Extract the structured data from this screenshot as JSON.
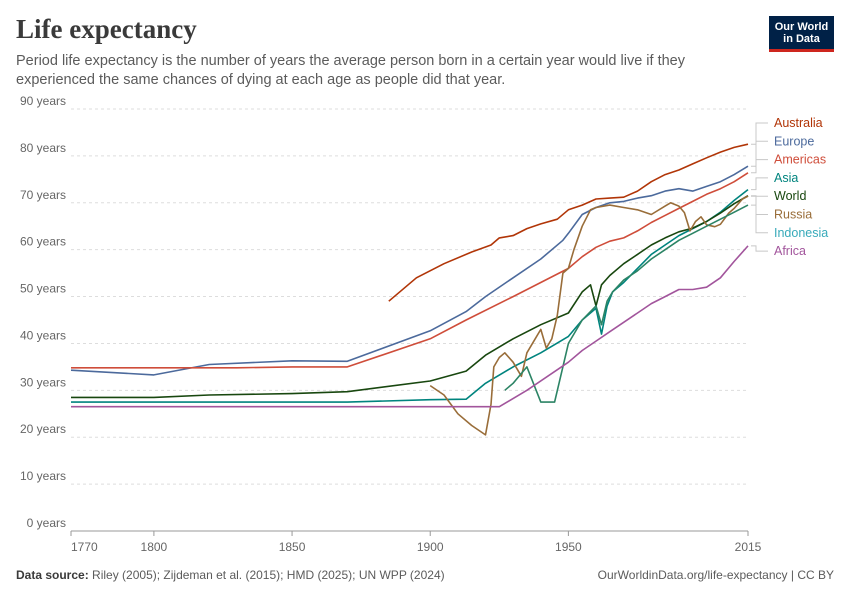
{
  "header": {
    "title": "Life expectancy",
    "subtitle": "Period life expectancy is the number of years the average person born in a certain year would live if they experienced the same chances of dying at each age as people did that year."
  },
  "logo": {
    "line1": "Our World",
    "line2": "in Data"
  },
  "footer": {
    "source_label": "Data source:",
    "source_text": "Riley (2005); Zijdeman et al. (2015); HMD (2025); UN WPP (2024)",
    "credit": "OurWorldinData.org/life-expectancy | CC BY"
  },
  "chart_data": {
    "type": "line",
    "title": "Life expectancy",
    "xlim": [
      1770,
      2015
    ],
    "ylim": [
      0,
      90
    ],
    "grid": true,
    "legend_placement": "right",
    "x_ticks": [
      {
        "value": 1770,
        "label": "1770"
      },
      {
        "value": 1800,
        "label": "1800"
      },
      {
        "value": 1850,
        "label": "1850"
      },
      {
        "value": 1900,
        "label": "1900"
      },
      {
        "value": 1950,
        "label": "1950"
      },
      {
        "value": 2015,
        "label": "2015"
      }
    ],
    "y_ticks": [
      {
        "value": 0,
        "label": "0 years"
      },
      {
        "value": 10,
        "label": "10 years"
      },
      {
        "value": 20,
        "label": "20 years"
      },
      {
        "value": 30,
        "label": "30 years"
      },
      {
        "value": 40,
        "label": "40 years"
      },
      {
        "value": 50,
        "label": "50 years"
      },
      {
        "value": 60,
        "label": "60 years"
      },
      {
        "value": 70,
        "label": "70 years"
      },
      {
        "value": 80,
        "label": "80 years"
      },
      {
        "value": 90,
        "label": "90 years"
      }
    ],
    "series": [
      {
        "name": "Australia",
        "color": "#b13507",
        "points": [
          [
            1885,
            49
          ],
          [
            1895,
            54
          ],
          [
            1905,
            57
          ],
          [
            1915,
            59.5
          ],
          [
            1922,
            61
          ],
          [
            1925,
            62.5
          ],
          [
            1930,
            63
          ],
          [
            1935,
            64.5
          ],
          [
            1940,
            65.5
          ],
          [
            1946,
            66.5
          ],
          [
            1950,
            68.5
          ],
          [
            1955,
            69.5
          ],
          [
            1960,
            70.8
          ],
          [
            1965,
            71
          ],
          [
            1970,
            71.2
          ],
          [
            1975,
            72.5
          ],
          [
            1980,
            74.5
          ],
          [
            1985,
            76
          ],
          [
            1990,
            77
          ],
          [
            1995,
            78.3
          ],
          [
            2000,
            79.6
          ],
          [
            2005,
            80.8
          ],
          [
            2010,
            81.8
          ],
          [
            2015,
            82.5
          ]
        ]
      },
      {
        "name": "Europe",
        "color": "#4c6a9c",
        "points": [
          [
            1770,
            34.3
          ],
          [
            1800,
            33.3
          ],
          [
            1820,
            35.5
          ],
          [
            1850,
            36.3
          ],
          [
            1870,
            36.2
          ],
          [
            1900,
            42.7
          ],
          [
            1913,
            46.8
          ],
          [
            1920,
            50
          ],
          [
            1930,
            54
          ],
          [
            1940,
            58
          ],
          [
            1948,
            62
          ],
          [
            1950,
            63.5
          ],
          [
            1955,
            67.5
          ],
          [
            1960,
            69
          ],
          [
            1965,
            70
          ],
          [
            1970,
            70.3
          ],
          [
            1975,
            71
          ],
          [
            1980,
            71.5
          ],
          [
            1985,
            72.5
          ],
          [
            1990,
            73
          ],
          [
            1995,
            72.5
          ],
          [
            2000,
            73.5
          ],
          [
            2005,
            74.5
          ],
          [
            2010,
            76
          ],
          [
            2015,
            77.8
          ]
        ]
      },
      {
        "name": "Americas",
        "color": "#cf4d3a",
        "points": [
          [
            1770,
            34.8
          ],
          [
            1800,
            34.8
          ],
          [
            1830,
            34.8
          ],
          [
            1850,
            35
          ],
          [
            1870,
            35
          ],
          [
            1900,
            41
          ],
          [
            1913,
            45
          ],
          [
            1930,
            50
          ],
          [
            1950,
            56
          ],
          [
            1955,
            58.5
          ],
          [
            1960,
            60.5
          ],
          [
            1965,
            61.8
          ],
          [
            1970,
            62.5
          ],
          [
            1975,
            64
          ],
          [
            1980,
            65.8
          ],
          [
            1985,
            67.3
          ],
          [
            1990,
            68.8
          ],
          [
            1995,
            70.3
          ],
          [
            2000,
            71.8
          ],
          [
            2005,
            73
          ],
          [
            2010,
            74.5
          ],
          [
            2015,
            76.4
          ]
        ]
      },
      {
        "name": "Asia",
        "color": "#00847e",
        "points": [
          [
            1770,
            27.5
          ],
          [
            1800,
            27.5
          ],
          [
            1850,
            27.5
          ],
          [
            1870,
            27.5
          ],
          [
            1900,
            28
          ],
          [
            1913,
            28.1
          ],
          [
            1920,
            31.5
          ],
          [
            1930,
            35
          ],
          [
            1940,
            38
          ],
          [
            1950,
            41.5
          ],
          [
            1955,
            45
          ],
          [
            1960,
            47.5
          ],
          [
            1962,
            42
          ],
          [
            1964,
            48
          ],
          [
            1966,
            51
          ],
          [
            1970,
            53
          ],
          [
            1975,
            56
          ],
          [
            1980,
            59
          ],
          [
            1985,
            61
          ],
          [
            1990,
            63
          ],
          [
            1995,
            64.5
          ],
          [
            2000,
            66
          ],
          [
            2005,
            68
          ],
          [
            2010,
            70.5
          ],
          [
            2015,
            72.8
          ]
        ]
      },
      {
        "name": "World",
        "color": "#18470f",
        "points": [
          [
            1770,
            28.5
          ],
          [
            1800,
            28.5
          ],
          [
            1820,
            29
          ],
          [
            1850,
            29.3
          ],
          [
            1870,
            29.7
          ],
          [
            1900,
            32
          ],
          [
            1913,
            34.1
          ],
          [
            1920,
            37.5
          ],
          [
            1930,
            41
          ],
          [
            1940,
            44
          ],
          [
            1950,
            46.5
          ],
          [
            1955,
            51
          ],
          [
            1958,
            52.5
          ],
          [
            1960,
            48
          ],
          [
            1962,
            52.5
          ],
          [
            1965,
            54.5
          ],
          [
            1970,
            57
          ],
          [
            1975,
            59
          ],
          [
            1980,
            61
          ],
          [
            1985,
            62.5
          ],
          [
            1990,
            63.8
          ],
          [
            1995,
            64.6
          ],
          [
            2000,
            66
          ],
          [
            2005,
            67.8
          ],
          [
            2010,
            69.8
          ],
          [
            2015,
            71.5
          ]
        ]
      },
      {
        "name": "Russia",
        "color": "#996d39",
        "points": [
          [
            1900,
            31
          ],
          [
            1905,
            29
          ],
          [
            1910,
            25
          ],
          [
            1915,
            22.5
          ],
          [
            1920,
            20.5
          ],
          [
            1922,
            27
          ],
          [
            1923,
            35
          ],
          [
            1925,
            37
          ],
          [
            1927,
            38
          ],
          [
            1930,
            36
          ],
          [
            1933,
            33
          ],
          [
            1935,
            38
          ],
          [
            1938,
            41
          ],
          [
            1940,
            43
          ],
          [
            1942,
            39
          ],
          [
            1944,
            41
          ],
          [
            1946,
            46
          ],
          [
            1948,
            55
          ],
          [
            1950,
            56
          ],
          [
            1952,
            60
          ],
          [
            1955,
            65
          ],
          [
            1958,
            68.5
          ],
          [
            1960,
            69
          ],
          [
            1965,
            69.5
          ],
          [
            1970,
            69
          ],
          [
            1975,
            68.5
          ],
          [
            1980,
            67.5
          ],
          [
            1985,
            69.3
          ],
          [
            1987,
            70
          ],
          [
            1990,
            69.3
          ],
          [
            1992,
            67.9
          ],
          [
            1994,
            64
          ],
          [
            1996,
            66
          ],
          [
            1998,
            67
          ],
          [
            2000,
            65.3
          ],
          [
            2003,
            64.9
          ],
          [
            2005,
            65.4
          ],
          [
            2008,
            67.8
          ],
          [
            2010,
            68.8
          ],
          [
            2013,
            70.8
          ],
          [
            2015,
            71.4
          ]
        ]
      },
      {
        "name": "Indonesia",
        "color": "#38aaba",
        "stroke": "#2c8465",
        "points": [
          [
            1927,
            30
          ],
          [
            1930,
            31.5
          ],
          [
            1935,
            35
          ],
          [
            1940,
            27.5
          ],
          [
            1945,
            27.5
          ],
          [
            1950,
            40
          ],
          [
            1955,
            45
          ],
          [
            1960,
            48
          ],
          [
            1962,
            44
          ],
          [
            1964,
            49
          ],
          [
            1966,
            51
          ],
          [
            1970,
            53.5
          ],
          [
            1975,
            55.5
          ],
          [
            1980,
            58
          ],
          [
            1985,
            60
          ],
          [
            1990,
            62
          ],
          [
            1995,
            63.5
          ],
          [
            2000,
            65
          ],
          [
            2005,
            66.5
          ],
          [
            2010,
            68
          ],
          [
            2015,
            69.5
          ]
        ]
      },
      {
        "name": "Africa",
        "color": "#a2559c",
        "points": [
          [
            1770,
            26.5
          ],
          [
            1800,
            26.5
          ],
          [
            1850,
            26.5
          ],
          [
            1900,
            26.5
          ],
          [
            1913,
            26.5
          ],
          [
            1925,
            26.5
          ],
          [
            1935,
            30
          ],
          [
            1945,
            34
          ],
          [
            1950,
            36
          ],
          [
            1955,
            38.5
          ],
          [
            1960,
            40.5
          ],
          [
            1965,
            42.5
          ],
          [
            1970,
            44.5
          ],
          [
            1975,
            46.5
          ],
          [
            1980,
            48.5
          ],
          [
            1985,
            50
          ],
          [
            1990,
            51.5
          ],
          [
            1995,
            51.5
          ],
          [
            2000,
            52
          ],
          [
            2005,
            54
          ],
          [
            2010,
            57.5
          ],
          [
            2015,
            60.8
          ]
        ]
      }
    ]
  }
}
